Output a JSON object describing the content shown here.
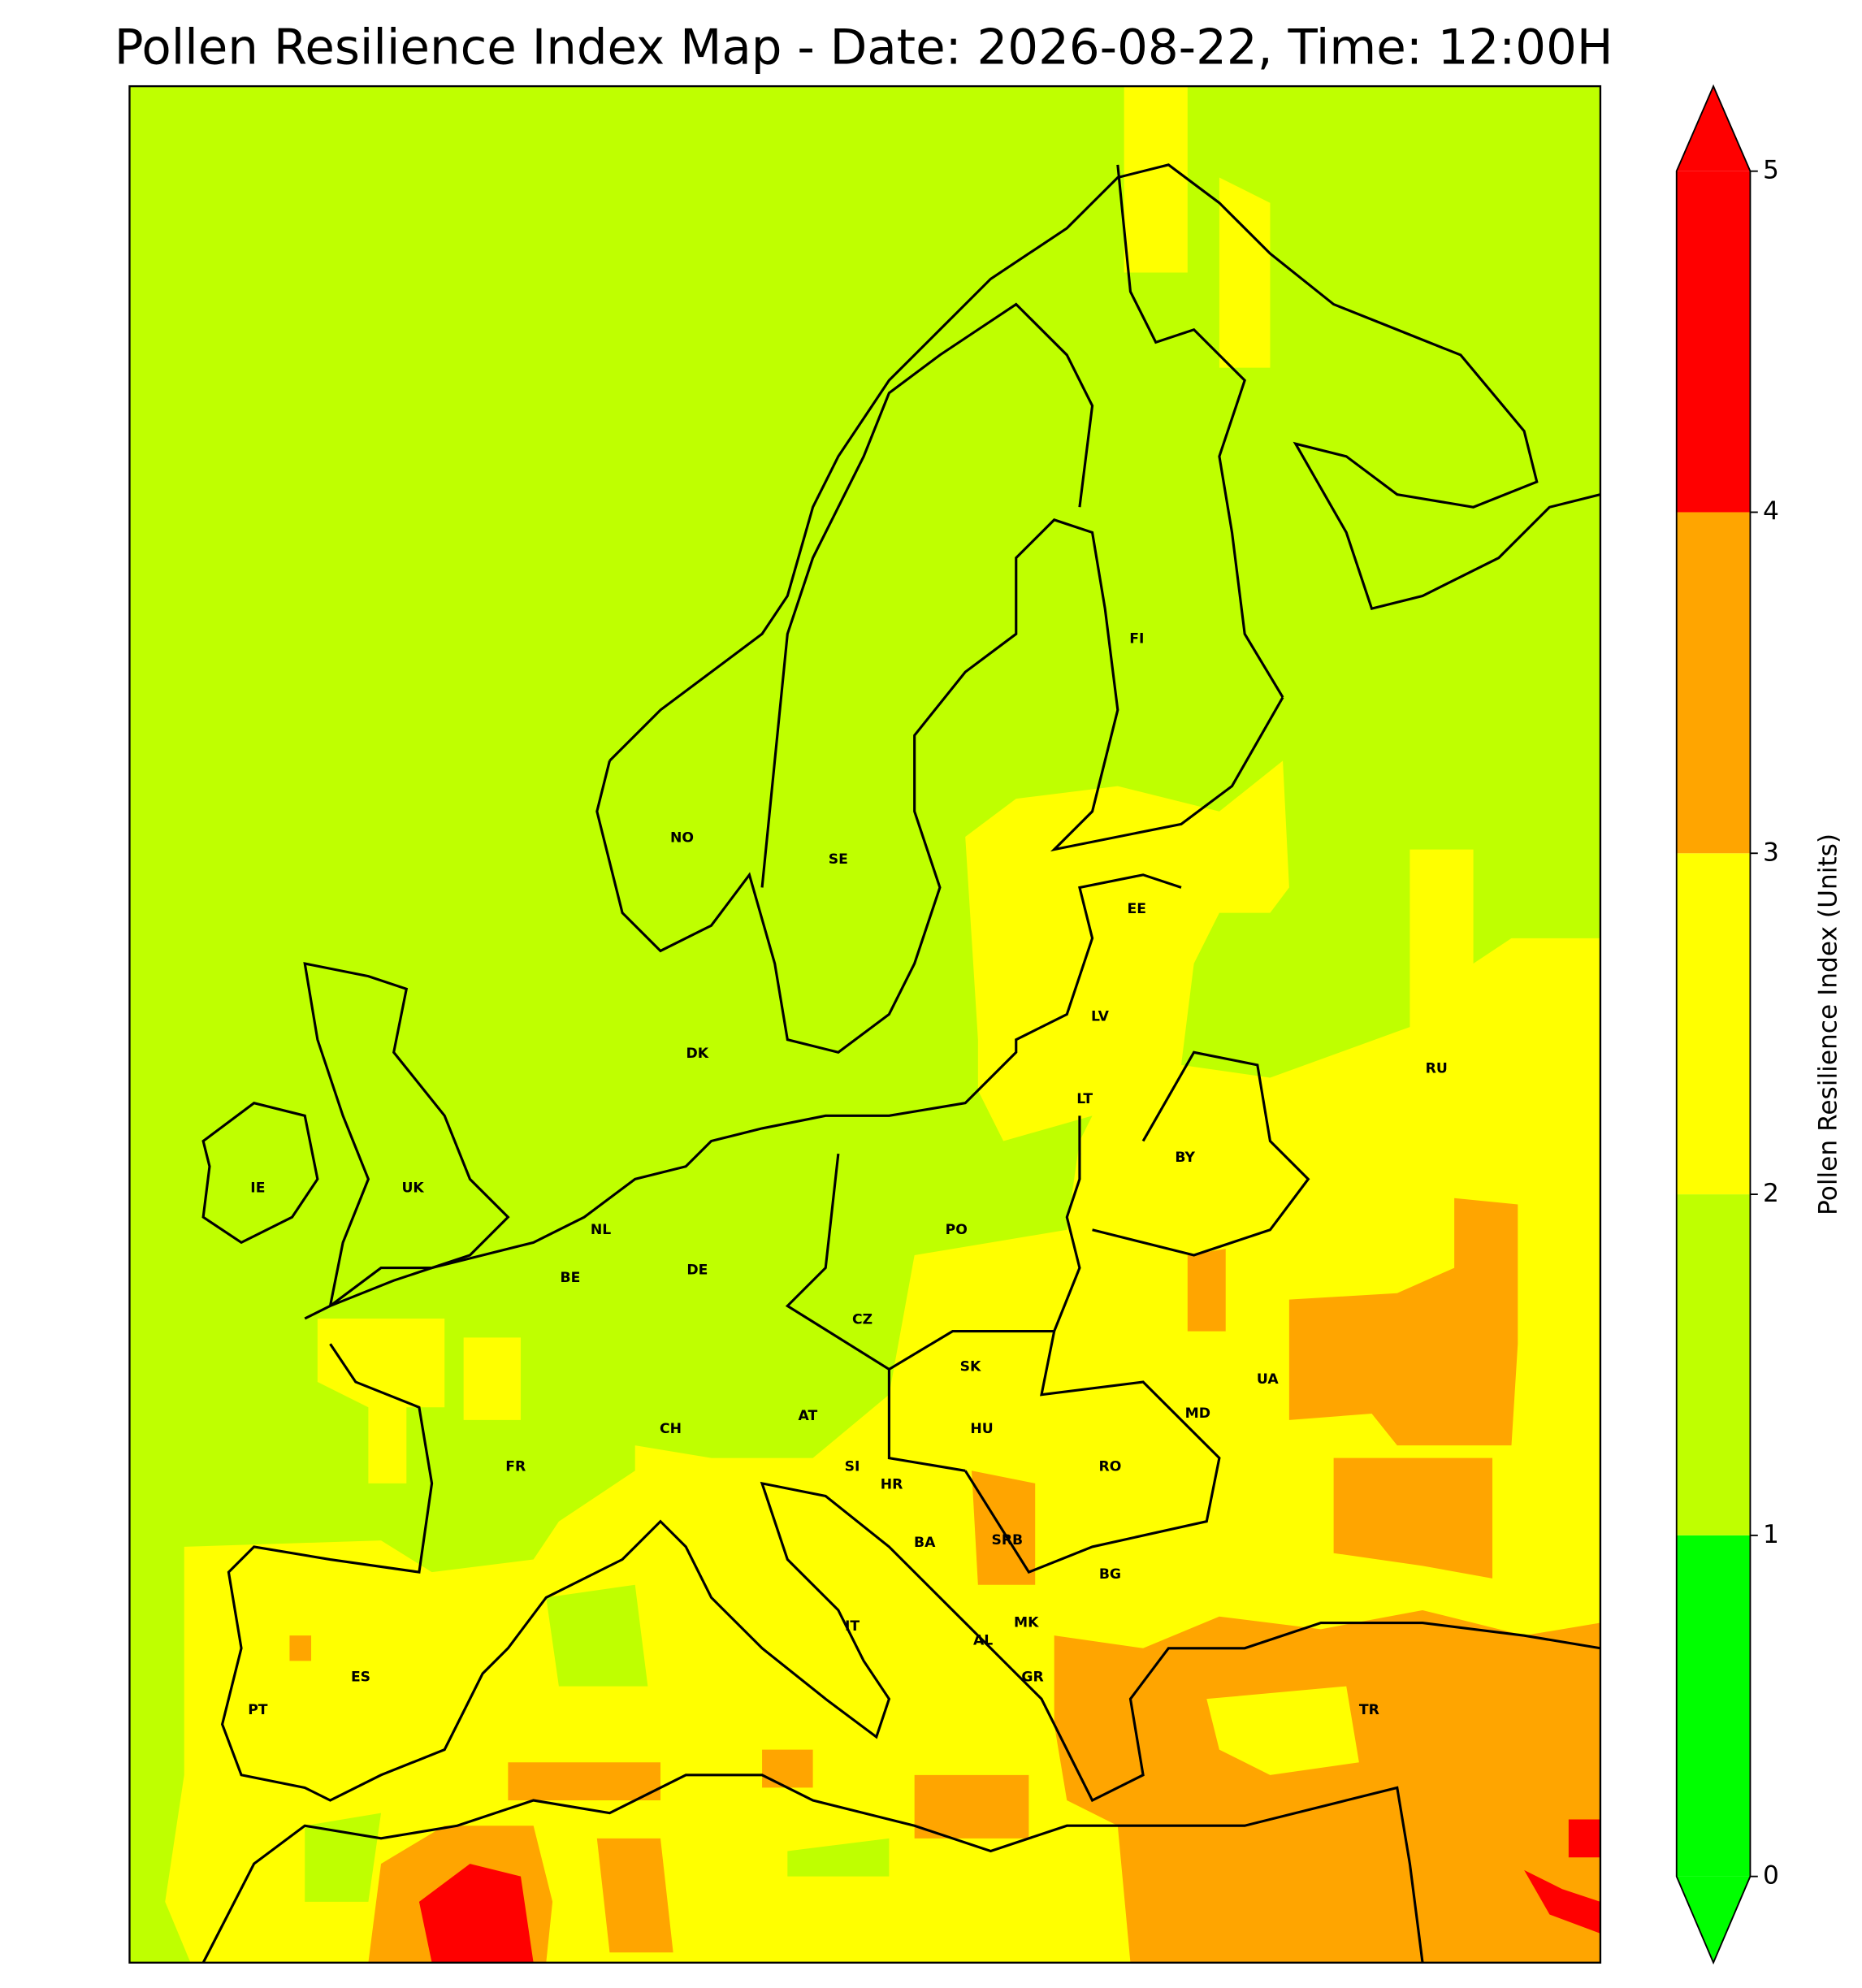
{
  "chart_data": {
    "type": "contour_map",
    "title": "Pollen Resilience Index Map - Date: 2026-08-22, Time: 12:00H",
    "colorbar": {
      "label": "Pollen Resilience Index (Units)",
      "lim": [
        0,
        5
      ],
      "ticks": [
        0,
        1,
        2,
        3,
        4,
        5
      ],
      "colors": [
        "#00ff00",
        "#bfff00",
        "#ffff00",
        "#ffa500",
        "#ff0000"
      ],
      "extend": "both"
    },
    "countries": [
      "NO",
      "SE",
      "FI",
      "EE",
      "LV",
      "LT",
      "RU",
      "BY",
      "DK",
      "IE",
      "UK",
      "NL",
      "BE",
      "DE",
      "PO",
      "CZ",
      "SK",
      "UA",
      "AT",
      "HU",
      "MD",
      "CH",
      "FR",
      "SI",
      "HR",
      "RO",
      "BA",
      "SRB",
      "BG",
      "IT",
      "MK",
      "AL",
      "GR",
      "ES",
      "PT",
      "TR"
    ]
  }
}
